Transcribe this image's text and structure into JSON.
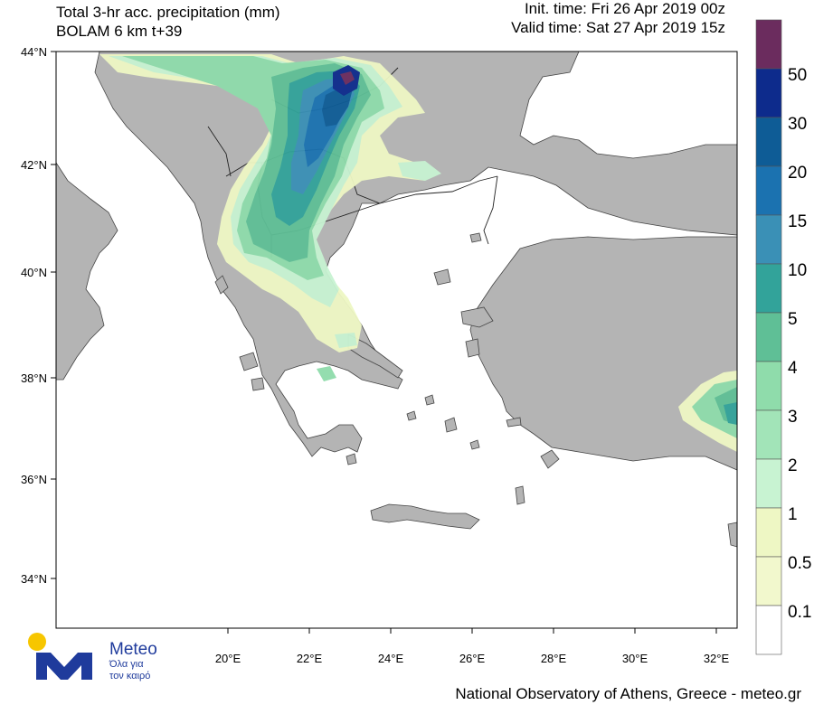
{
  "header": {
    "title_line1": "Total 3-hr acc. precipitation (mm)",
    "title_line2": "BOLAM 6 km t+39",
    "init_time": "Init. time: Fri 26 Apr 2019 00z",
    "valid_time": "Sat 27 Apr 2019 15z",
    "valid_time_full": "Valid time: Sat 27 Apr 2019 15z"
  },
  "map": {
    "lat_labels": [
      "44°N",
      "42°N",
      "40°N",
      "38°N",
      "36°N",
      "34°N"
    ],
    "lon_labels": [
      "20°E",
      "22°E",
      "24°E",
      "26°E",
      "28°E",
      "30°E",
      "32°E"
    ],
    "land_color": "#b4b4b4",
    "sea_color": "#ffffff"
  },
  "legend": {
    "labels": [
      "50",
      "30",
      "20",
      "15",
      "10",
      "5",
      "4",
      "3",
      "2",
      "1",
      "0.5",
      "0.1"
    ],
    "colors": [
      "#6b2c5e",
      "#0d2b8c",
      "#0e5c96",
      "#1b72b0",
      "#3a90b6",
      "#32a39a",
      "#5fbf96",
      "#a2e4b8",
      "#8fdcab",
      "#c8f3d2",
      "#eef7c4",
      "#f2f8cd",
      "#ffffff"
    ]
  },
  "logo": {
    "name": "Meteo",
    "tagline1": "Όλα για",
    "tagline2": "τον καιρό"
  },
  "footer": "National Observatory of Athens, Greece - meteo.gr"
}
